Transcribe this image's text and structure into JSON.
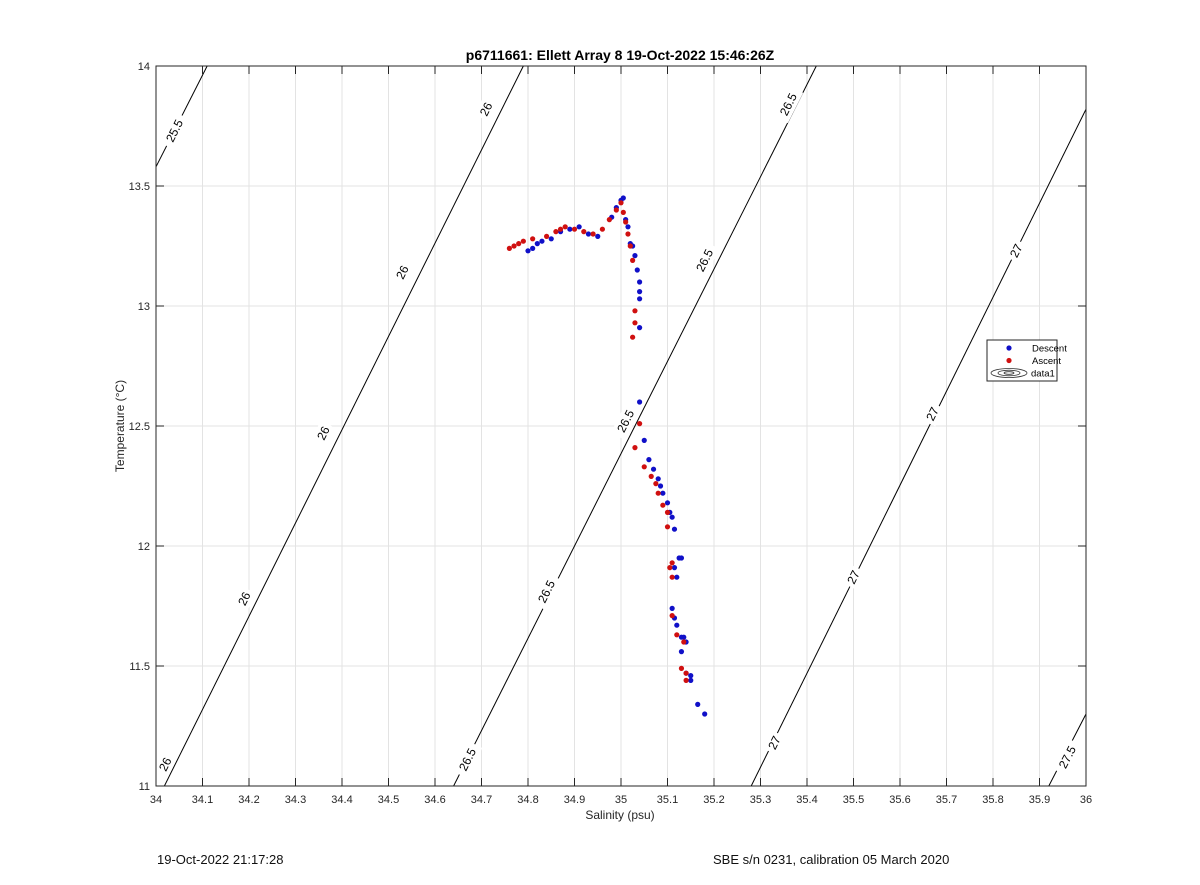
{
  "chart_data": {
    "type": "scatter",
    "title": "p6711661: Ellett Array 8 19-Oct-2022 15:46:26Z",
    "xlabel": "Salinity (psu)",
    "ylabel": "Temperature (°C)",
    "xlim": [
      34,
      36
    ],
    "ylim": [
      11,
      14
    ],
    "xticks": [
      34,
      34.1,
      34.2,
      34.3,
      34.4,
      34.5,
      34.6,
      34.7,
      34.8,
      34.9,
      35,
      35.1,
      35.2,
      35.3,
      35.4,
      35.5,
      35.6,
      35.7,
      35.8,
      35.9,
      36
    ],
    "xtick_labels": [
      "34",
      "34.1",
      "34.2",
      "34.3",
      "34.4",
      "34.5",
      "34.6",
      "34.7",
      "34.8",
      "34.9",
      "35",
      "35.1",
      "35.2",
      "35.3",
      "35.4",
      "35.5",
      "35.6",
      "35.7",
      "35.8",
      "35.9",
      "36"
    ],
    "yticks": [
      11,
      11.5,
      12,
      12.5,
      13,
      13.5,
      14
    ],
    "ytick_labels": [
      "11",
      "11.5",
      "12",
      "12.5",
      "13",
      "13.5",
      "14"
    ],
    "grid": true,
    "legend": {
      "placement": "right",
      "entries": [
        "Descent",
        "Ascent",
        "data1"
      ]
    },
    "contours": [
      {
        "name": "25.5",
        "points": [
          [
            34.0,
            13.58
          ],
          [
            34.11,
            14.0
          ]
        ],
        "labels": [
          {
            "text": "25.5",
            "at": [
              34.04,
              13.73
            ]
          }
        ]
      },
      {
        "name": "26",
        "points": [
          [
            34.0,
            10.93
          ],
          [
            34.79,
            14.0
          ]
        ],
        "labels": [
          {
            "text": "26",
            "at": [
              34.02,
              11.09
            ]
          },
          {
            "text": "26",
            "at": [
              34.19,
              11.78
            ]
          },
          {
            "text": "26",
            "at": [
              34.36,
              12.47
            ]
          },
          {
            "text": "26",
            "at": [
              34.53,
              13.14
            ]
          },
          {
            "text": "26",
            "at": [
              34.71,
              13.82
            ]
          }
        ]
      },
      {
        "name": "26.5",
        "points": [
          [
            34.64,
            11.0
          ],
          [
            35.42,
            14.0
          ]
        ],
        "labels": [
          {
            "text": "26.5",
            "at": [
              34.67,
              11.11
            ]
          },
          {
            "text": "26.5",
            "at": [
              34.84,
              11.81
            ]
          },
          {
            "text": "26.5",
            "at": [
              35.01,
              12.52
            ]
          },
          {
            "text": "26.5",
            "at": [
              35.18,
              13.19
            ]
          },
          {
            "text": "26.5",
            "at": [
              35.36,
              13.84
            ]
          }
        ]
      },
      {
        "name": "27",
        "points": [
          [
            35.28,
            11.0
          ],
          [
            36.0,
            13.82
          ]
        ],
        "labels": [
          {
            "text": "27",
            "at": [
              35.33,
              11.18
            ]
          },
          {
            "text": "27",
            "at": [
              35.5,
              11.87
            ]
          },
          {
            "text": "27",
            "at": [
              35.67,
              12.55
            ]
          },
          {
            "text": "27",
            "at": [
              35.85,
              13.23
            ]
          }
        ]
      },
      {
        "name": "27.5",
        "points": [
          [
            35.92,
            11.0
          ],
          [
            36.0,
            11.3
          ]
        ],
        "labels": [
          {
            "text": "27.5",
            "at": [
              35.96,
              11.12
            ]
          }
        ]
      }
    ],
    "series": [
      {
        "name": "Descent",
        "color": "#1010c8",
        "points": [
          [
            34.8,
            13.23
          ],
          [
            34.81,
            13.24
          ],
          [
            34.82,
            13.26
          ],
          [
            34.83,
            13.27
          ],
          [
            34.85,
            13.28
          ],
          [
            34.87,
            13.31
          ],
          [
            34.89,
            13.32
          ],
          [
            34.91,
            13.33
          ],
          [
            34.93,
            13.3
          ],
          [
            34.95,
            13.29
          ],
          [
            34.98,
            13.37
          ],
          [
            34.99,
            13.41
          ],
          [
            35.0,
            13.44
          ],
          [
            35.005,
            13.45
          ],
          [
            35.01,
            13.36
          ],
          [
            35.015,
            13.33
          ],
          [
            35.02,
            13.26
          ],
          [
            35.025,
            13.25
          ],
          [
            35.03,
            13.21
          ],
          [
            35.035,
            13.15
          ],
          [
            35.04,
            13.1
          ],
          [
            35.04,
            13.06
          ],
          [
            35.04,
            13.03
          ],
          [
            35.04,
            12.91
          ],
          [
            35.04,
            12.6
          ],
          [
            35.05,
            12.44
          ],
          [
            35.06,
            12.36
          ],
          [
            35.07,
            12.32
          ],
          [
            35.08,
            12.28
          ],
          [
            35.085,
            12.25
          ],
          [
            35.09,
            12.22
          ],
          [
            35.1,
            12.18
          ],
          [
            35.105,
            12.14
          ],
          [
            35.11,
            12.12
          ],
          [
            35.115,
            12.07
          ],
          [
            35.125,
            11.95
          ],
          [
            35.13,
            11.95
          ],
          [
            35.115,
            11.91
          ],
          [
            35.12,
            11.87
          ],
          [
            35.11,
            11.74
          ],
          [
            35.115,
            11.7
          ],
          [
            35.12,
            11.67
          ],
          [
            35.13,
            11.62
          ],
          [
            35.135,
            11.62
          ],
          [
            35.14,
            11.6
          ],
          [
            35.13,
            11.56
          ],
          [
            35.14,
            11.47
          ],
          [
            35.15,
            11.46
          ],
          [
            35.15,
            11.44
          ],
          [
            35.165,
            11.34
          ],
          [
            35.18,
            11.3
          ]
        ]
      },
      {
        "name": "Ascent",
        "color": "#d01010",
        "points": [
          [
            34.76,
            13.24
          ],
          [
            34.77,
            13.25
          ],
          [
            34.78,
            13.26
          ],
          [
            34.79,
            13.27
          ],
          [
            34.81,
            13.28
          ],
          [
            34.84,
            13.29
          ],
          [
            34.86,
            13.31
          ],
          [
            34.87,
            13.32
          ],
          [
            34.88,
            13.33
          ],
          [
            34.9,
            13.32
          ],
          [
            34.92,
            13.31
          ],
          [
            34.94,
            13.3
          ],
          [
            34.96,
            13.32
          ],
          [
            34.975,
            13.36
          ],
          [
            34.99,
            13.4
          ],
          [
            35.0,
            13.43
          ],
          [
            35.005,
            13.39
          ],
          [
            35.01,
            13.35
          ],
          [
            35.015,
            13.3
          ],
          [
            35.02,
            13.25
          ],
          [
            35.025,
            13.19
          ],
          [
            35.03,
            12.98
          ],
          [
            35.03,
            12.93
          ],
          [
            35.025,
            12.87
          ],
          [
            35.04,
            12.51
          ],
          [
            35.03,
            12.41
          ],
          [
            35.05,
            12.33
          ],
          [
            35.065,
            12.29
          ],
          [
            35.075,
            12.26
          ],
          [
            35.08,
            12.22
          ],
          [
            35.09,
            12.17
          ],
          [
            35.1,
            12.14
          ],
          [
            35.1,
            12.08
          ],
          [
            35.11,
            11.93
          ],
          [
            35.105,
            11.91
          ],
          [
            35.11,
            11.87
          ],
          [
            35.11,
            11.71
          ],
          [
            35.12,
            11.63
          ],
          [
            35.135,
            11.6
          ],
          [
            35.13,
            11.49
          ],
          [
            35.14,
            11.47
          ],
          [
            35.14,
            11.44
          ]
        ]
      }
    ]
  },
  "footer": {
    "left": "19-Oct-2022 21:17:28",
    "right": "SBE s/n 0231, calibration 05 March 2020"
  }
}
